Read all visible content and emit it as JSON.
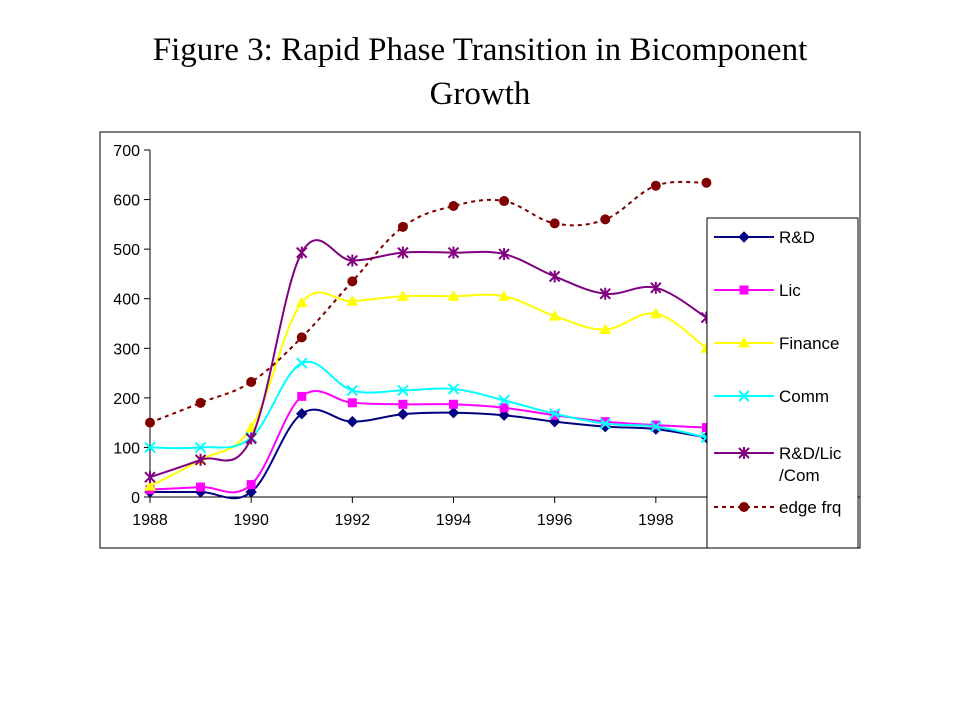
{
  "slide": {
    "title_line1": "Figure 3: Rapid Phase Transition in Bicomponent",
    "title_line2": "Growth"
  },
  "chart_data": {
    "type": "line",
    "title": "Figure 3: Rapid Phase Transition in Bicomponent Growth",
    "xlabel": "",
    "ylabel": "",
    "x": [
      1988,
      1989,
      1990,
      1991,
      1992,
      1993,
      1994,
      1995,
      1996,
      1997,
      1998,
      1999
    ],
    "xlim": [
      1988,
      2000
    ],
    "ylim": [
      0,
      700
    ],
    "x_ticks": [
      "1988",
      "1990",
      "1992",
      "1994",
      "1996",
      "1998"
    ],
    "y_ticks": [
      "0",
      "100",
      "200",
      "300",
      "400",
      "500",
      "600",
      "700"
    ],
    "grid": false,
    "legend_position": "right",
    "series": [
      {
        "name": "R&D",
        "color": "#000080",
        "marker": "diamond",
        "dashed": false,
        "values": [
          10,
          10,
          10,
          168,
          152,
          167,
          170,
          165,
          152,
          142,
          137,
          120
        ]
      },
      {
        "name": "Lic",
        "color": "#FF00FF",
        "marker": "square",
        "dashed": false,
        "values": [
          15,
          20,
          25,
          203,
          190,
          187,
          187,
          180,
          165,
          152,
          145,
          140
        ]
      },
      {
        "name": "Finance",
        "color": "#FFFF00",
        "marker": "triangle",
        "dashed": false,
        "values": [
          22,
          75,
          140,
          392,
          395,
          405,
          405,
          405,
          365,
          338,
          370,
          300
        ]
      },
      {
        "name": "Comm",
        "color": "#00FFFF",
        "marker": "x",
        "dashed": false,
        "values": [
          100,
          100,
          120,
          270,
          215,
          215,
          218,
          195,
          168,
          148,
          142,
          120
        ]
      },
      {
        "name": "R&D/Lic\n/Com",
        "color": "#800080",
        "marker": "star",
        "dashed": false,
        "values": [
          40,
          75,
          118,
          493,
          477,
          493,
          493,
          490,
          445,
          410,
          422,
          362
        ]
      },
      {
        "name": "edge frq",
        "color": "#800000",
        "marker": "circle",
        "dashed": true,
        "values": [
          150,
          190,
          232,
          322,
          435,
          545,
          587,
          597,
          552,
          560,
          628,
          634
        ]
      }
    ]
  }
}
